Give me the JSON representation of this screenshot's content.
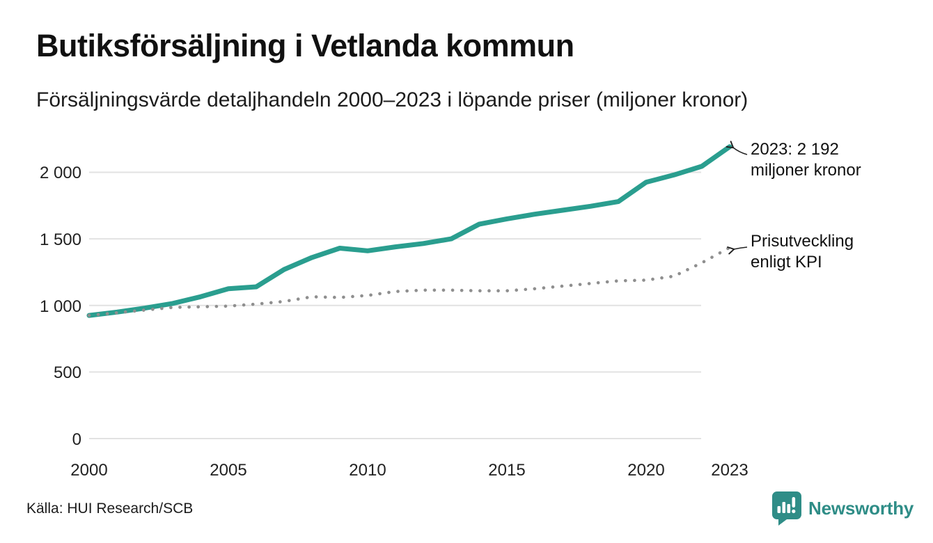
{
  "header": {
    "title": "Butiksförsäljning i Vetlanda kommun",
    "subtitle": "Försäljningsvärde detaljhandeln 2000–2023 i löpande priser (miljoner kronor)"
  },
  "chart_data": {
    "type": "line",
    "title": "Butiksförsäljning i Vetlanda kommun",
    "subtitle": "Försäljningsvärde detaljhandeln 2000–2023 i löpande priser (miljoner kronor)",
    "x": [
      2000,
      2001,
      2002,
      2003,
      2004,
      2005,
      2006,
      2007,
      2008,
      2009,
      2010,
      2011,
      2012,
      2013,
      2014,
      2015,
      2016,
      2017,
      2018,
      2019,
      2020,
      2021,
      2022,
      2023
    ],
    "series": [
      {
        "name": "Butiksförsäljning i löpande priser",
        "style": "solid",
        "color": "#2a9e8f",
        "values": [
          925,
          950,
          980,
          1015,
          1065,
          1125,
          1140,
          1270,
          1360,
          1430,
          1410,
          1440,
          1465,
          1500,
          1610,
          1650,
          1685,
          1715,
          1745,
          1780,
          1925,
          1980,
          2045,
          2192
        ]
      },
      {
        "name": "Prisutveckling enligt KPI",
        "style": "dotted",
        "color": "#8f8f8f",
        "values": [
          925,
          945,
          965,
          985,
          990,
          995,
          1010,
          1030,
          1065,
          1060,
          1075,
          1105,
          1115,
          1115,
          1110,
          1110,
          1125,
          1145,
          1165,
          1185,
          1190,
          1220,
          1320,
          1435
        ]
      }
    ],
    "ylim": [
      0,
      2250
    ],
    "yticks": [
      0,
      500,
      1000,
      1500,
      2000
    ],
    "ytick_labels": [
      "0",
      "500",
      "1 000",
      "1 500",
      "2 000"
    ],
    "xticks": [
      2000,
      2005,
      2010,
      2015,
      2020,
      2023
    ],
    "xtick_labels": [
      "2000",
      "2005",
      "2010",
      "2015",
      "2020",
      "2023"
    ],
    "grid": "horizontal",
    "legend_position": "none",
    "annotations": [
      {
        "line1": "2023: 2 192",
        "line2": "miljoner kronor",
        "target": "solid line end 2023 = 2192"
      },
      {
        "line1": "Prisutveckling",
        "line2": "enligt KPI",
        "target": "dotted line end 2023 ≈ 1435"
      }
    ],
    "final_value_label": "2023: 2 192 miljoner kronor"
  },
  "footer": {
    "source": "Källa: HUI Research/SCB",
    "logo_text": "Newsworthy"
  },
  "colors": {
    "line_teal": "#2a9e8f",
    "kpi_gray": "#8f8f8f",
    "gridline": "#e2e2e2",
    "logo_teal": "#2f8d87",
    "text": "#111111"
  }
}
